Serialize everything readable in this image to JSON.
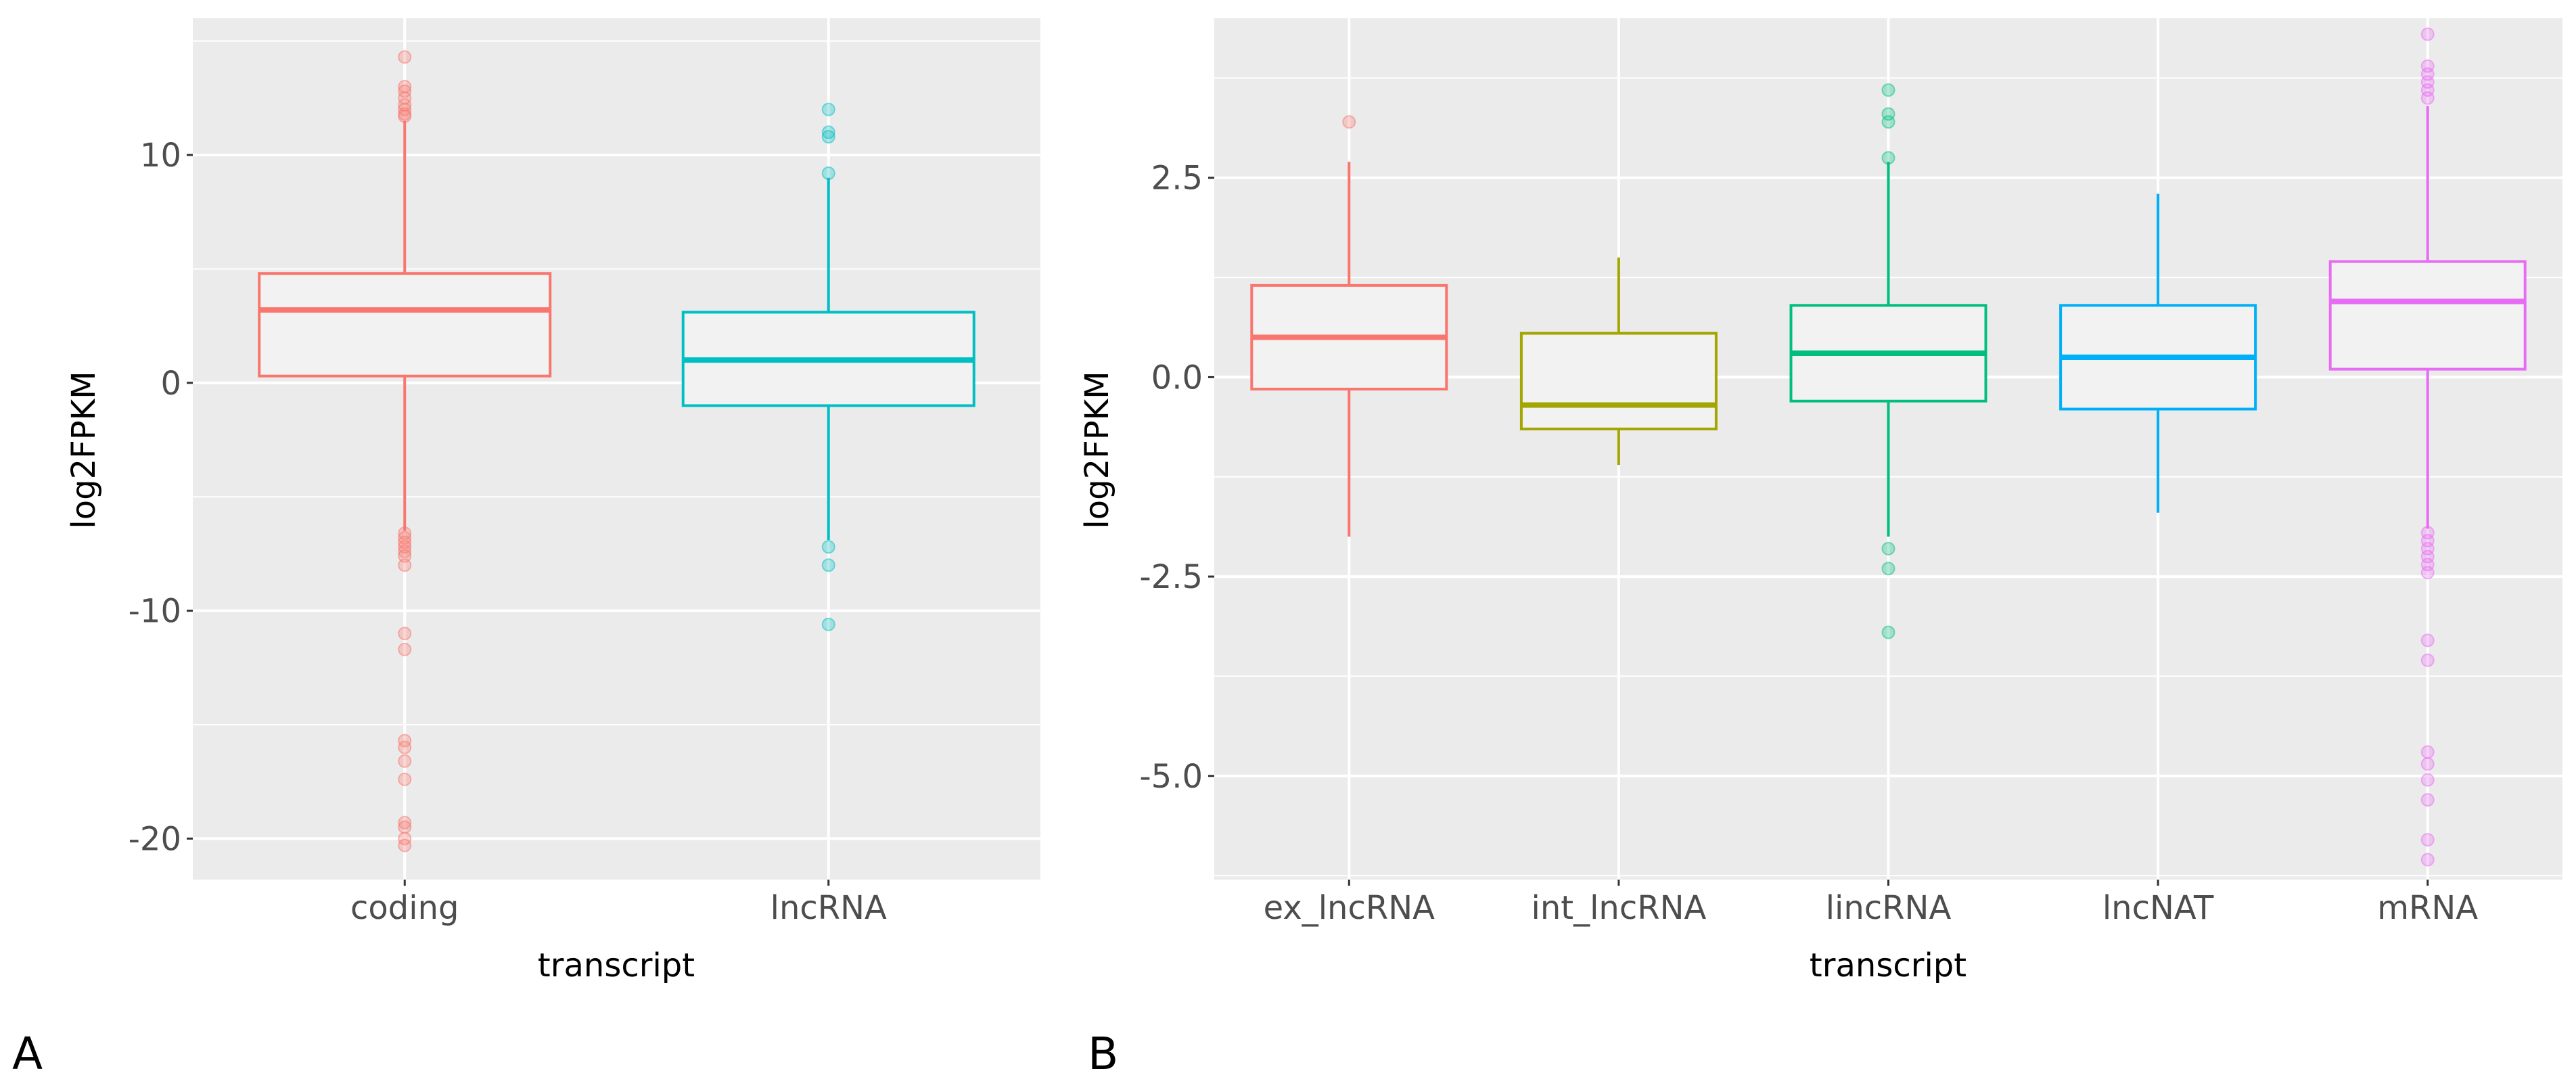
{
  "panel_labels": [
    "A",
    "B"
  ],
  "colors": {
    "panel_bg": "#ebebeb",
    "grid": "#ffffff",
    "box_fill": "#f2f2f2",
    "tick_text": "#4d4d4d",
    "coding": "#F8766D",
    "lncRNA": "#00BFC4",
    "ex_lncRNA": "#F8766D",
    "int_lncRNA": "#A3A500",
    "lincRNA": "#00BF7D",
    "lncNAT": "#00B0F6",
    "mRNA": "#E76BF3"
  },
  "chart_data": [
    {
      "type": "boxplot",
      "panel": "A",
      "xlabel": "transcript",
      "ylabel": "log2FPKM",
      "ylim": [
        -21.8,
        16.0
      ],
      "yticks": [
        -20,
        -10,
        0,
        10
      ],
      "ytick_labels": [
        "-20",
        "-10",
        "0",
        "10"
      ],
      "categories": [
        "coding",
        "lncRNA"
      ],
      "category_labels": [
        "coding",
        "lncRNA"
      ],
      "boxes": [
        {
          "name": "coding",
          "color_key": "coding",
          "whisker_low": -6.5,
          "q1": 0.3,
          "median": 3.2,
          "q3": 4.8,
          "whisker_high": 11.5,
          "outliers": [
            14.3,
            13.0,
            12.8,
            12.5,
            12.2,
            12.0,
            11.8,
            11.7,
            -6.6,
            -6.8,
            -7.0,
            -7.2,
            -7.4,
            -7.6,
            -8.0,
            -11.0,
            -11.7,
            -15.7,
            -16.0,
            -16.6,
            -17.4,
            -19.3,
            -19.5,
            -20.0,
            -20.3
          ]
        },
        {
          "name": "lncRNA",
          "color_key": "lncRNA",
          "whisker_low": -6.9,
          "q1": -1.0,
          "median": 1.0,
          "q3": 3.1,
          "whisker_high": 9.0,
          "outliers": [
            12.0,
            11.0,
            10.8,
            9.2,
            -7.2,
            -8.0,
            -10.6
          ]
        }
      ]
    },
    {
      "type": "boxplot",
      "panel": "B",
      "xlabel": "transcript",
      "ylabel": "log2FPKM",
      "ylim": [
        -6.3,
        4.5
      ],
      "yticks": [
        -5.0,
        -2.5,
        0.0,
        2.5
      ],
      "ytick_labels": [
        "-5.0",
        "-2.5",
        "0.0",
        "2.5"
      ],
      "categories": [
        "ex_lncRNA",
        "int_lncRNA",
        "lincRNA",
        "lncNAT",
        "mRNA"
      ],
      "category_labels": [
        "ex_lncRNA",
        "int_lncRNA",
        "lincRNA",
        "lncNAT",
        "mRNA"
      ],
      "boxes": [
        {
          "name": "ex_lncRNA",
          "color_key": "ex_lncRNA",
          "whisker_low": -2.0,
          "q1": -0.15,
          "median": 0.5,
          "q3": 1.15,
          "whisker_high": 2.7,
          "outliers": [
            3.2
          ]
        },
        {
          "name": "int_lncRNA",
          "color_key": "int_lncRNA",
          "whisker_low": -1.1,
          "q1": -0.65,
          "median": -0.35,
          "q3": 0.55,
          "whisker_high": 1.5,
          "outliers": []
        },
        {
          "name": "lincRNA",
          "color_key": "lincRNA",
          "whisker_low": -2.0,
          "q1": -0.3,
          "median": 0.3,
          "q3": 0.9,
          "whisker_high": 2.7,
          "outliers": [
            3.6,
            3.3,
            3.2,
            2.75,
            -2.15,
            -2.4,
            -3.2
          ]
        },
        {
          "name": "lncNAT",
          "color_key": "lncNAT",
          "whisker_low": -1.7,
          "q1": -0.4,
          "median": 0.25,
          "q3": 0.9,
          "whisker_high": 2.3,
          "outliers": []
        },
        {
          "name": "mRNA",
          "color_key": "mRNA",
          "whisker_low": -1.9,
          "q1": 0.1,
          "median": 0.95,
          "q3": 1.45,
          "whisker_high": 3.4,
          "outliers": [
            4.3,
            3.9,
            3.8,
            3.7,
            3.6,
            3.5,
            -1.95,
            -2.05,
            -2.15,
            -2.25,
            -2.35,
            -2.45,
            -3.3,
            -3.55,
            -4.7,
            -4.85,
            -5.05,
            -5.3,
            -5.8,
            -6.05
          ]
        }
      ]
    }
  ]
}
